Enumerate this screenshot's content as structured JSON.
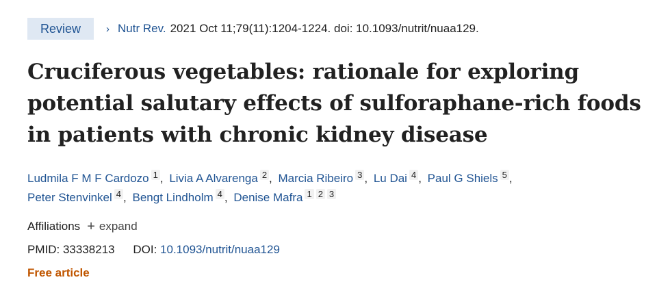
{
  "header": {
    "type_label": "Review",
    "journal": "Nutr Rev.",
    "citation": "2021 Oct 11;79(11):1204-1224. doi: 10.1093/nutrit/nuaa129."
  },
  "title_lines": [
    "Cruciferous vegetables: rationale for exploring",
    "potential salutary effects of sulforaphane-rich foods",
    "in patients with chronic kidney disease"
  ],
  "authors": [
    {
      "name": "Ludmila F M F Cardozo",
      "affs": [
        "1"
      ]
    },
    {
      "name": "Livia A Alvarenga",
      "affs": [
        "2"
      ]
    },
    {
      "name": "Marcia Ribeiro",
      "affs": [
        "3"
      ]
    },
    {
      "name": "Lu Dai",
      "affs": [
        "4"
      ]
    },
    {
      "name": "Paul G Shiels",
      "affs": [
        "5"
      ]
    },
    {
      "name": "Peter Stenvinkel",
      "affs": [
        "4"
      ]
    },
    {
      "name": "Bengt Lindholm",
      "affs": [
        "4"
      ]
    },
    {
      "name": "Denise Mafra",
      "affs": [
        "1",
        "2",
        "3"
      ]
    }
  ],
  "affiliations": {
    "label": "Affiliations",
    "expand_label": "expand"
  },
  "ids": {
    "pmid_label": "PMID:",
    "pmid": "33338213",
    "doi_label": "DOI:",
    "doi": "10.1093/nutrit/nuaa129"
  },
  "free_article": "Free article",
  "colors": {
    "link": "#205493",
    "badge_bg": "#dfe8f3",
    "free_article": "#c05600"
  },
  "icons": {
    "chevron": "chevron-right-icon",
    "plus": "plus-icon"
  }
}
